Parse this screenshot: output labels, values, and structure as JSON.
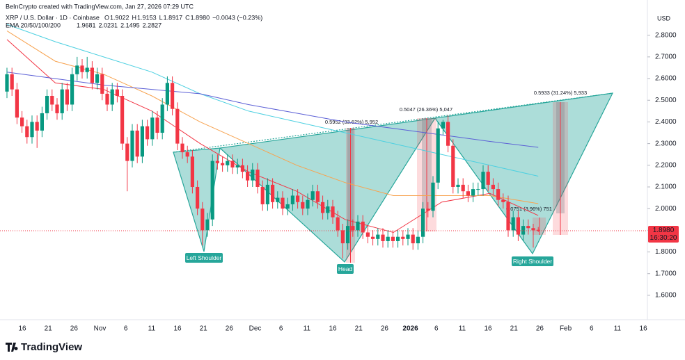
{
  "header": {
    "credit": "BeInCrypto created with TradingView.com, Jan 27, 2026 07:29 UTC",
    "symbol": "XRP / U.S. Dollar · 1D · Coinbase",
    "ohlc": [
      {
        "label": "O",
        "value": "1.9022"
      },
      {
        "label": "H",
        "value": "1.9153"
      },
      {
        "label": "L",
        "value": "1.8917"
      },
      {
        "label": "C",
        "value": "1.8980"
      }
    ],
    "change": "−0.0043 (−0.23%)",
    "ema_title": "EMA 20/50/100/200",
    "ema_values": [
      "1.9681",
      "2.0231",
      "2.1495",
      "2.2827"
    ],
    "currency": "USD"
  },
  "annotations": {
    "left_shoulder": "Left Shoulder",
    "head": "Head",
    "right_shoulder": "Right Shoulder",
    "measures": [
      "0.5952 (33.62%) 5,952",
      "0.5047 (26.36%) 5,047",
      "0.5933 (31.24%) 5,933",
      "0.0751 (3.96%) 751"
    ]
  },
  "footer": {
    "logo": "TradingView"
  },
  "chart_data": {
    "type": "candlestick",
    "up_color": "#089981",
    "down_color": "#f23645",
    "categories": [
      null,
      null,
      null,
      null,
      null,
      null,
      null,
      null,
      null,
      null,
      null,
      null,
      null,
      null,
      null,
      null,
      null,
      null,
      null,
      null,
      null,
      null,
      null,
      null,
      null,
      null,
      null,
      null,
      null,
      null,
      null,
      null,
      null,
      null,
      null,
      null,
      null,
      null,
      null,
      null,
      null,
      null,
      null,
      null,
      null,
      null,
      null,
      null,
      null,
      null,
      null,
      null,
      null,
      null,
      null,
      null,
      null,
      null,
      null,
      null,
      null,
      null,
      null,
      null,
      null,
      null,
      null,
      null,
      null,
      null,
      null,
      null,
      null,
      null,
      null,
      null,
      null,
      null,
      null,
      null,
      null,
      null,
      null,
      null,
      null,
      null,
      null,
      null,
      null,
      null,
      null,
      null,
      null,
      null,
      null,
      null,
      null,
      null,
      null,
      null,
      null,
      null,
      null,
      null,
      null,
      null,
      null
    ],
    "open": [
      2.54,
      2.62,
      2.55,
      2.42,
      2.38,
      2.33,
      2.4,
      2.36,
      2.44,
      2.52,
      2.48,
      2.44,
      2.55,
      2.48,
      2.62,
      2.66,
      2.63,
      2.65,
      2.58,
      2.62,
      2.53,
      2.48,
      2.55,
      2.52,
      2.3,
      2.22,
      2.36,
      2.24,
      2.38,
      2.32,
      2.42,
      2.35,
      2.48,
      2.58,
      2.46,
      2.3,
      2.26,
      2.24,
      2.1,
      2.0,
      1.9,
      1.95,
      2.22,
      2.21,
      2.2,
      2.22,
      2.19,
      2.2,
      2.17,
      2.13,
      2.18,
      2.1,
      2.02,
      2.11,
      2.03,
      2.05,
      2.0,
      2.02,
      2.06,
      2.03,
      2.0,
      2.04,
      2.08,
      2.03,
      1.98,
      2.01,
      1.96,
      1.9,
      1.84,
      1.92,
      1.9,
      1.94,
      1.89,
      1.87,
      1.86,
      1.88,
      1.85,
      1.87,
      1.85,
      1.87,
      1.86,
      1.88,
      1.84,
      1.87,
      2.0,
      1.99,
      2.12,
      2.37,
      2.4,
      2.29,
      2.1,
      2.11,
      2.08,
      2.06,
      2.09,
      2.09,
      2.17,
      2.11,
      2.09,
      2.04,
      2.03,
      1.9,
      1.96,
      1.88,
      1.92,
      1.91,
      1.9022
    ],
    "high": [
      2.65,
      2.65,
      2.58,
      2.45,
      2.41,
      2.43,
      2.43,
      2.47,
      2.55,
      2.55,
      2.51,
      2.58,
      2.58,
      2.65,
      2.7,
      2.69,
      2.7,
      2.68,
      2.65,
      2.65,
      2.56,
      2.58,
      2.58,
      2.55,
      2.33,
      2.39,
      2.39,
      2.41,
      2.41,
      2.45,
      2.45,
      2.51,
      2.61,
      2.61,
      2.49,
      2.33,
      2.29,
      2.27,
      2.13,
      2.03,
      1.98,
      2.25,
      2.25,
      2.24,
      2.25,
      2.25,
      2.23,
      2.23,
      2.2,
      2.21,
      2.21,
      2.13,
      2.14,
      2.14,
      2.08,
      2.08,
      2.05,
      2.09,
      2.09,
      2.06,
      2.07,
      2.11,
      2.11,
      2.06,
      2.04,
      2.04,
      1.99,
      1.93,
      1.95,
      1.95,
      1.97,
      1.97,
      1.92,
      1.9,
      1.91,
      1.91,
      1.9,
      1.9,
      1.9,
      1.9,
      1.91,
      1.91,
      1.9,
      2.03,
      2.03,
      2.15,
      2.4,
      2.41,
      2.43,
      2.32,
      2.14,
      2.14,
      2.11,
      2.12,
      2.12,
      2.2,
      2.2,
      2.14,
      2.12,
      2.07,
      2.06,
      1.99,
      1.99,
      1.95,
      1.95,
      1.93,
      1.9153
    ],
    "low": [
      2.51,
      2.52,
      2.39,
      2.35,
      2.3,
      2.3,
      2.28,
      2.33,
      2.41,
      2.45,
      2.41,
      2.41,
      2.45,
      2.45,
      2.59,
      2.6,
      2.6,
      2.55,
      2.55,
      2.5,
      2.45,
      2.45,
      2.49,
      2.27,
      2.08,
      2.19,
      2.21,
      2.21,
      2.29,
      2.29,
      2.32,
      2.32,
      2.45,
      2.43,
      2.27,
      2.23,
      2.21,
      2.07,
      1.97,
      1.83,
      1.87,
      1.92,
      2.18,
      2.17,
      2.17,
      2.16,
      2.16,
      2.14,
      2.1,
      2.1,
      2.07,
      1.99,
      1.99,
      2.0,
      2.0,
      1.97,
      1.97,
      1.99,
      2.0,
      1.97,
      1.97,
      2.01,
      2.0,
      1.95,
      1.95,
      1.93,
      1.87,
      1.77,
      1.81,
      1.87,
      1.87,
      1.86,
      1.84,
      1.83,
      1.83,
      1.82,
      1.82,
      1.82,
      1.82,
      1.83,
      1.83,
      1.81,
      1.81,
      1.84,
      1.96,
      1.96,
      2.09,
      2.34,
      2.26,
      2.07,
      2.07,
      2.05,
      2.03,
      2.03,
      2.06,
      2.06,
      2.08,
      2.06,
      2.01,
      2.0,
      1.87,
      1.87,
      1.85,
      1.85,
      1.88,
      1.82,
      1.8917
    ],
    "close": [
      2.62,
      2.55,
      2.42,
      2.38,
      2.33,
      2.4,
      2.36,
      2.44,
      2.52,
      2.48,
      2.44,
      2.55,
      2.48,
      2.62,
      2.66,
      2.63,
      2.65,
      2.58,
      2.62,
      2.53,
      2.48,
      2.55,
      2.52,
      2.3,
      2.22,
      2.36,
      2.24,
      2.38,
      2.32,
      2.42,
      2.35,
      2.48,
      2.58,
      2.46,
      2.3,
      2.26,
      2.24,
      2.1,
      2.0,
      1.9,
      1.95,
      2.22,
      2.21,
      2.2,
      2.22,
      2.19,
      2.2,
      2.17,
      2.13,
      2.18,
      2.1,
      2.02,
      2.11,
      2.03,
      2.05,
      2.0,
      2.02,
      2.06,
      2.03,
      2.0,
      2.04,
      2.08,
      2.03,
      1.98,
      2.01,
      1.96,
      1.9,
      1.84,
      1.92,
      1.9,
      1.94,
      1.89,
      1.87,
      1.86,
      1.88,
      1.85,
      1.87,
      1.85,
      1.87,
      1.86,
      1.88,
      1.84,
      1.87,
      2.0,
      1.99,
      2.12,
      2.37,
      2.4,
      2.29,
      2.1,
      2.11,
      2.08,
      2.06,
      2.09,
      2.09,
      2.17,
      2.11,
      2.09,
      2.04,
      2.03,
      1.9,
      1.96,
      1.88,
      1.92,
      1.91,
      1.9,
      1.898
    ],
    "ema": [
      {
        "name": "20",
        "color": "#f23645",
        "values": [
          2.78,
          2.58,
          2.55,
          2.45,
          2.3,
          2.17,
          2.08,
          1.95,
          1.89,
          2.03,
          2.07,
          1.968
        ]
      },
      {
        "name": "50",
        "color": "#f7a350",
        "values": [
          2.82,
          2.68,
          2.62,
          2.52,
          2.4,
          2.3,
          2.2,
          2.12,
          2.06,
          2.06,
          2.06,
          2.023
        ]
      },
      {
        "name": "100",
        "color": "#4dd0e1",
        "values": [
          2.85,
          2.77,
          2.7,
          2.63,
          2.53,
          2.45,
          2.4,
          2.35,
          2.3,
          2.25,
          2.2,
          2.1495
        ]
      },
      {
        "name": "200",
        "color": "#5b5fd6",
        "values": [
          2.63,
          2.6,
          2.57,
          2.55,
          2.53,
          2.48,
          2.44,
          2.4,
          2.37,
          2.34,
          2.31,
          2.2827
        ]
      }
    ],
    "ylim": [
      1.4875,
      2.9625
    ],
    "yticks": [
      {
        "value": 2.8,
        "label": "2.8000"
      },
      {
        "value": 2.7,
        "label": "2.7000"
      },
      {
        "value": 2.6,
        "label": "2.6000"
      },
      {
        "value": 2.5,
        "label": "2.5000"
      },
      {
        "value": 2.4,
        "label": "2.4000"
      },
      {
        "value": 2.3,
        "label": "2.3000"
      },
      {
        "value": 2.2,
        "label": "2.2000"
      },
      {
        "value": 2.1,
        "label": "2.1000"
      },
      {
        "value": 2.0,
        "label": "2.0000"
      },
      {
        "value": 1.9,
        "label": "1.9000"
      },
      {
        "value": 1.8,
        "label": "1.8000"
      },
      {
        "value": 1.7,
        "label": "1.7000"
      },
      {
        "value": 1.6,
        "label": "1.6000"
      }
    ],
    "xticks": [
      "16",
      "21",
      "26",
      "Nov",
      "6",
      "11",
      "16",
      "21",
      "26",
      "Dec",
      "6",
      "11",
      "16",
      "21",
      "26",
      "2026",
      "6",
      "11",
      "16",
      "21",
      "26",
      "Feb",
      "6",
      "11",
      "16"
    ],
    "last_price_label": "1.8980",
    "countdown": "16:30:20"
  }
}
